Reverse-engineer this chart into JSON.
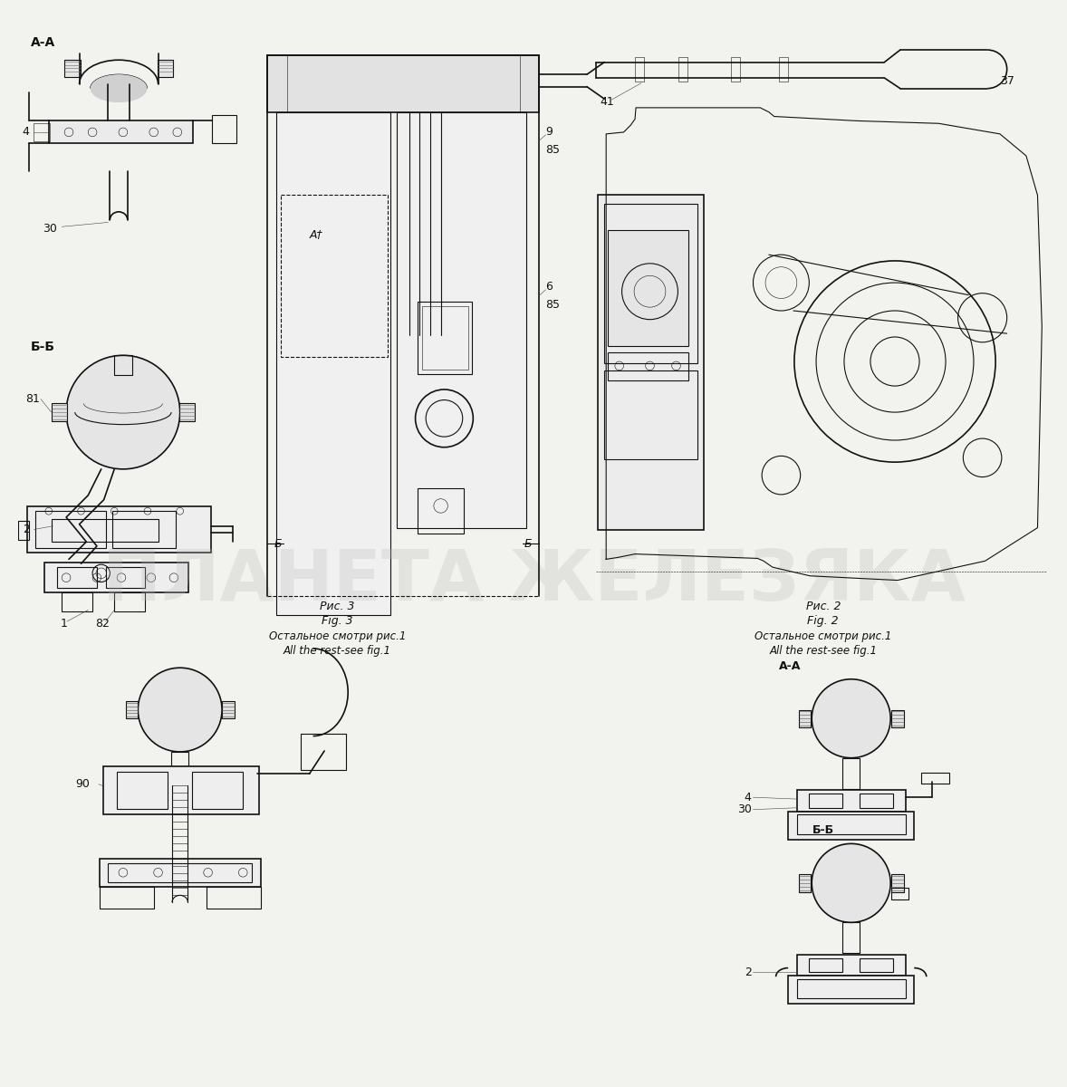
{
  "bg_color": "#f2f2ee",
  "line_color": "#111111",
  "watermark_text": "ПЛАНЕТА ЖЕЛЕЗЯКА",
  "watermark_alpha": 0.28,
  "watermark_fontsize": 56,
  "watermark_color": "#bbbbbb",
  "fig3_texts": [
    "Рис. 3",
    "Fig. 3",
    "Остальное смотри рис.1",
    "All the rest-see fig.1"
  ],
  "fig2_texts": [
    "Рис. 2",
    "Fig. 2",
    "Остальное смотри рис.1",
    "All the rest-see fig.1"
  ],
  "label_AA": "А-А",
  "label_BB": "Б-Б",
  "label_4": "4",
  "label_30": "30",
  "label_81": "81",
  "label_2": "2",
  "label_1": "1",
  "label_82": "82",
  "label_9": "9",
  "label_85": "85",
  "label_6": "6",
  "label_41": "41",
  "label_37": "37",
  "label_90": "90",
  "label_At": "А†"
}
